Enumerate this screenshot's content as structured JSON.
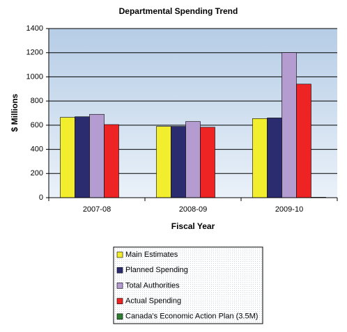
{
  "chart_data": {
    "type": "bar",
    "title": "Departmental Spending Trend",
    "x_label": "Fiscal Year",
    "y_label": "$ Millions",
    "categories": [
      "2007-08",
      "2008-09",
      "2009-10"
    ],
    "series": [
      {
        "name": "Main Estimates",
        "color": "#f2ee2e",
        "values": [
          665,
          590,
          655
        ]
      },
      {
        "name": "Planned Spending",
        "color": "#2b2b70",
        "values": [
          670,
          590,
          660
        ]
      },
      {
        "name": "Total Authorities",
        "color": "#b49bd0",
        "values": [
          690,
          630,
          1200
        ]
      },
      {
        "name": "Actual Spending",
        "color": "#ee2424",
        "values": [
          605,
          583,
          940
        ]
      },
      {
        "name": "Canada's Economic Action Plan (3.5M)",
        "color": "#2e7d32",
        "values": [
          null,
          null,
          3.5
        ]
      }
    ],
    "ylim": [
      0,
      1400
    ],
    "yticks": [
      0,
      200,
      400,
      600,
      800,
      1000,
      1200,
      1400
    ],
    "grid": true
  }
}
